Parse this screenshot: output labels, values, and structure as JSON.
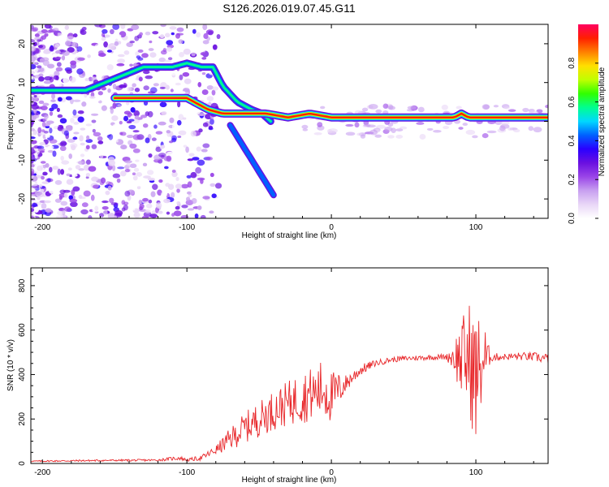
{
  "title": "S126.2026.019.07.45.G11",
  "chart_data": [
    {
      "type": "heatmap",
      "name": "spectrogram",
      "xlabel": "Height of straight line (km)",
      "ylabel": "Frequency (Hz)",
      "xlim": [
        -208,
        150
      ],
      "ylim": [
        -25,
        25
      ],
      "xticks": [
        -200,
        -100,
        0,
        100
      ],
      "yticks": [
        -20,
        -10,
        0,
        10,
        20
      ],
      "colorbar": {
        "label": "Normalized spectral amplitude",
        "range": [
          0,
          1
        ],
        "ticks": [
          "0.0",
          "0.2",
          "0.4",
          "0.6",
          "0.8"
        ],
        "colors": [
          "#ffffff",
          "#e9d7f7",
          "#c8a0f0",
          "#9a45e8",
          "#6a10e0",
          "#2a00ff",
          "#0060ff",
          "#00d8ff",
          "#00ff90",
          "#30ff00",
          "#c0ff00",
          "#ffe000",
          "#ff8000",
          "#ff2000",
          "#ff0060"
        ]
      },
      "features": [
        {
          "name": "main-trace",
          "x": [
            -150,
            -120,
            -100,
            -85,
            -75,
            -60,
            -45,
            -30,
            -15,
            0,
            50,
            85,
            90,
            95,
            100,
            150
          ],
          "freq": [
            6,
            6,
            6,
            3,
            2,
            2,
            2,
            1,
            2,
            1,
            1,
            1,
            2,
            1,
            1,
            1
          ]
        },
        {
          "name": "upper-trace",
          "x": [
            -208,
            -190,
            -170,
            -130,
            -120,
            -110,
            -100,
            -90,
            -82,
            -75,
            -65,
            -55,
            -48,
            -42
          ],
          "freq": [
            8,
            8,
            8,
            14,
            14,
            14,
            15,
            14,
            14,
            9,
            5,
            3,
            2,
            0
          ]
        },
        {
          "name": "diving-trace",
          "x": [
            -70,
            -65,
            -60,
            -55,
            -50,
            -45,
            -40
          ],
          "freq": [
            -1,
            -4,
            -7,
            -10,
            -13,
            -16,
            -19
          ]
        }
      ]
    },
    {
      "type": "line",
      "name": "snr",
      "xlabel": "Height of straight line (km)",
      "ylabel": "SNR (10 * v/v)",
      "xlim": [
        -208,
        150
      ],
      "ylim": [
        0,
        880
      ],
      "xticks": [
        -200,
        -100,
        0,
        100
      ],
      "yticks": [
        0,
        200,
        400,
        600,
        800
      ],
      "color": "#e8282b",
      "series": [
        {
          "name": "SNR",
          "x": [
            -208,
            -180,
            -150,
            -120,
            -105,
            -100,
            -90,
            -80,
            -70,
            -60,
            -50,
            -40,
            -30,
            -20,
            -10,
            -5,
            0,
            10,
            20,
            30,
            40,
            50,
            60,
            70,
            80,
            85,
            90,
            95,
            100,
            105,
            110,
            120,
            130,
            140,
            150
          ],
          "y": [
            10,
            12,
            14,
            15,
            25,
            15,
            25,
            60,
            110,
            160,
            200,
            240,
            270,
            300,
            320,
            340,
            300,
            360,
            420,
            450,
            465,
            472,
            475,
            478,
            480,
            482,
            470,
            480,
            380,
            470,
            478,
            480,
            482,
            480,
            470
          ],
          "noise": [
            3,
            4,
            4,
            5,
            10,
            6,
            12,
            20,
            50,
            70,
            80,
            90,
            100,
            120,
            120,
            150,
            120,
            40,
            25,
            15,
            12,
            12,
            12,
            12,
            14,
            80,
            180,
            260,
            300,
            200,
            20,
            15,
            18,
            20,
            25
          ]
        }
      ]
    }
  ]
}
